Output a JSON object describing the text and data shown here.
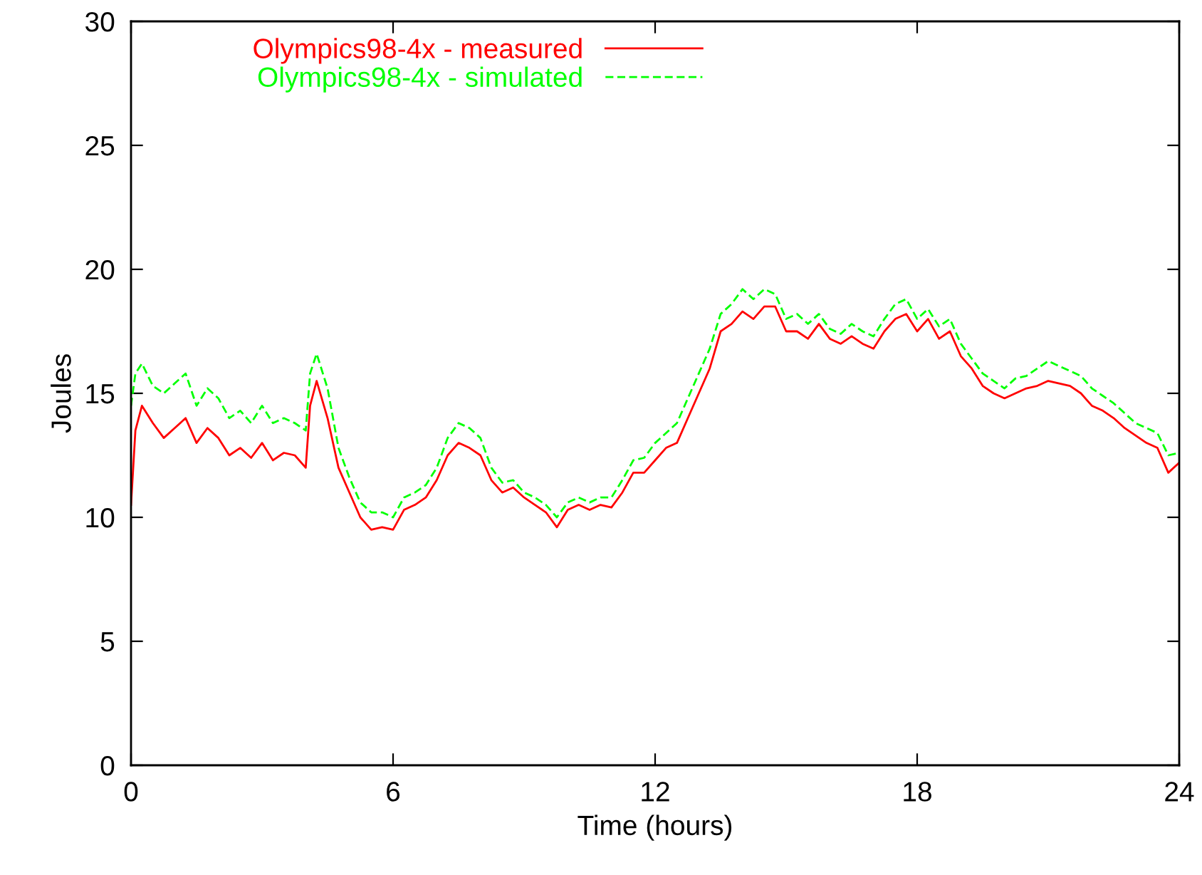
{
  "chart_data": {
    "type": "line",
    "xlabel": "Time (hours)",
    "ylabel": "Joules",
    "x": [
      0,
      0.1,
      0.25,
      0.5,
      0.75,
      1,
      1.25,
      1.5,
      1.75,
      2,
      2.25,
      2.5,
      2.75,
      3,
      3.25,
      3.5,
      3.75,
      4,
      4.1,
      4.25,
      4.5,
      4.75,
      5,
      5.25,
      5.5,
      5.75,
      6,
      6.25,
      6.5,
      6.75,
      7,
      7.25,
      7.5,
      7.75,
      8,
      8.25,
      8.5,
      8.75,
      9,
      9.25,
      9.5,
      9.75,
      10,
      10.25,
      10.5,
      10.75,
      11,
      11.25,
      11.5,
      11.75,
      12,
      12.25,
      12.5,
      12.75,
      13,
      13.25,
      13.5,
      13.75,
      14,
      14.25,
      14.5,
      14.75,
      15,
      15.25,
      15.5,
      15.75,
      16,
      16.25,
      16.5,
      16.75,
      17,
      17.25,
      17.5,
      17.75,
      18,
      18.25,
      18.5,
      18.75,
      19,
      19.25,
      19.5,
      19.75,
      20,
      20.25,
      20.5,
      20.75,
      21,
      21.25,
      21.5,
      21.75,
      22,
      22.25,
      22.5,
      22.75,
      23,
      23.25,
      23.5,
      23.75,
      24
    ],
    "series": [
      {
        "name": "Olympics98-4x - measured",
        "color": "#ff0000",
        "line_style": "solid",
        "values": [
          10.5,
          13.5,
          14.5,
          13.8,
          13.2,
          13.6,
          14.0,
          13.0,
          13.6,
          13.2,
          12.5,
          12.8,
          12.4,
          13.0,
          12.3,
          12.6,
          12.5,
          12.0,
          14.5,
          15.5,
          14.0,
          12.0,
          11.0,
          10.0,
          9.5,
          9.6,
          9.5,
          10.3,
          10.5,
          10.8,
          11.5,
          12.5,
          13.0,
          12.8,
          12.5,
          11.5,
          11.0,
          11.2,
          10.8,
          10.5,
          10.2,
          9.6,
          10.3,
          10.5,
          10.3,
          10.5,
          10.4,
          11.0,
          11.8,
          11.8,
          12.3,
          12.8,
          13.0,
          14.0,
          15.0,
          16.0,
          17.5,
          17.8,
          18.3,
          18.0,
          18.5,
          18.5,
          17.5,
          17.5,
          17.2,
          17.8,
          17.2,
          17.0,
          17.3,
          17.0,
          16.8,
          17.5,
          18.0,
          18.2,
          17.5,
          18.0,
          17.2,
          17.5,
          16.5,
          16.0,
          15.3,
          15.0,
          14.8,
          15.0,
          15.2,
          15.3,
          15.5,
          15.4,
          15.3,
          15.0,
          14.5,
          14.3,
          14.0,
          13.6,
          13.3,
          13.0,
          12.8,
          11.8,
          12.2
        ]
      },
      {
        "name": "Olympics98-4x - simulated",
        "color": "#00ff00",
        "line_style": "dashed",
        "values": [
          14.5,
          15.8,
          16.2,
          15.3,
          15.0,
          15.4,
          15.8,
          14.5,
          15.2,
          14.8,
          14.0,
          14.3,
          13.8,
          14.5,
          13.8,
          14.0,
          13.8,
          13.5,
          15.8,
          16.6,
          15.2,
          12.8,
          11.6,
          10.6,
          10.2,
          10.2,
          10.0,
          10.8,
          11.0,
          11.3,
          12.0,
          13.2,
          13.8,
          13.6,
          13.2,
          12.0,
          11.4,
          11.5,
          11.0,
          10.8,
          10.5,
          10.0,
          10.6,
          10.8,
          10.6,
          10.8,
          10.8,
          11.5,
          12.3,
          12.4,
          13.0,
          13.4,
          13.8,
          14.8,
          15.8,
          16.8,
          18.2,
          18.6,
          19.2,
          18.8,
          19.2,
          19.0,
          18.0,
          18.2,
          17.8,
          18.2,
          17.6,
          17.4,
          17.8,
          17.5,
          17.3,
          18.0,
          18.6,
          18.8,
          18.0,
          18.4,
          17.7,
          18.0,
          17.0,
          16.4,
          15.8,
          15.5,
          15.2,
          15.6,
          15.7,
          16.0,
          16.3,
          16.1,
          15.9,
          15.7,
          15.2,
          14.9,
          14.6,
          14.2,
          13.8,
          13.6,
          13.4,
          12.5,
          12.6
        ]
      }
    ],
    "xlim": [
      0,
      24
    ],
    "xticks": [
      0,
      6,
      12,
      18,
      24
    ],
    "ylim": [
      0,
      30
    ],
    "yticks": [
      0,
      5,
      10,
      15,
      20,
      25,
      30
    ],
    "grid": false,
    "legend": "top left",
    "marker": "none"
  }
}
